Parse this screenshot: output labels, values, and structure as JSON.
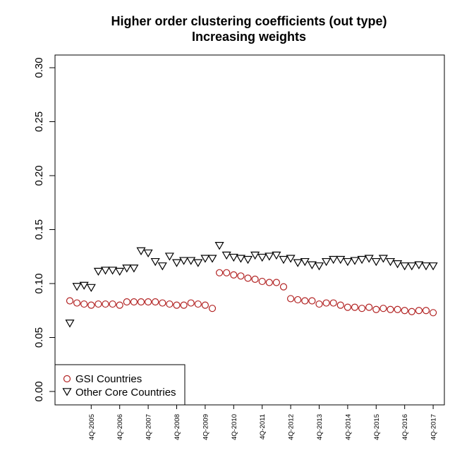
{
  "chart_data": {
    "type": "scatter",
    "title": "Higher order clustering coefficients (out type)",
    "subtitle": "Increasing weights",
    "xlabel": "",
    "ylabel": "",
    "ylim": [
      0.0,
      0.3
    ],
    "yticks": [
      "0.00",
      "0.05",
      "0.10",
      "0.15",
      "0.20",
      "0.25",
      "0.30"
    ],
    "x_tick_labels": [
      "4Q-2005",
      "4Q-2006",
      "4Q-2007",
      "4Q-2008",
      "4Q-2009",
      "4Q-2010",
      "4Q-2011",
      "4Q-2012",
      "4Q-2013",
      "4Q-2014",
      "4Q-2015",
      "4Q-2016",
      "4Q-2017"
    ],
    "legend_position": "bottom-left",
    "series": [
      {
        "name": "GSI Countries",
        "marker": "circle",
        "color": "#b22222",
        "values": [
          0.084,
          0.082,
          0.081,
          0.08,
          0.081,
          0.081,
          0.081,
          0.08,
          0.083,
          0.083,
          0.083,
          0.083,
          0.083,
          0.082,
          0.081,
          0.08,
          0.08,
          0.082,
          0.081,
          0.08,
          0.077,
          0.11,
          0.11,
          0.108,
          0.107,
          0.105,
          0.104,
          0.102,
          0.101,
          0.101,
          0.097,
          0.086,
          0.085,
          0.084,
          0.084,
          0.081,
          0.082,
          0.082,
          0.08,
          0.078,
          0.078,
          0.077,
          0.078,
          0.076,
          0.077,
          0.076,
          0.076,
          0.075,
          0.074,
          0.075,
          0.075,
          0.073
        ]
      },
      {
        "name": "Other Core Countries",
        "marker": "triangle-down",
        "color": "#000000",
        "values": [
          0.064,
          0.098,
          0.099,
          0.097,
          0.112,
          0.113,
          0.113,
          0.112,
          0.115,
          0.115,
          0.131,
          0.129,
          0.121,
          0.117,
          0.126,
          0.12,
          0.122,
          0.122,
          0.12,
          0.124,
          0.124,
          0.136,
          0.127,
          0.125,
          0.124,
          0.123,
          0.127,
          0.125,
          0.126,
          0.127,
          0.123,
          0.124,
          0.12,
          0.121,
          0.118,
          0.117,
          0.121,
          0.123,
          0.123,
          0.121,
          0.122,
          0.123,
          0.124,
          0.121,
          0.124,
          0.121,
          0.119,
          0.117,
          0.117,
          0.118,
          0.117,
          0.117
        ]
      }
    ]
  }
}
